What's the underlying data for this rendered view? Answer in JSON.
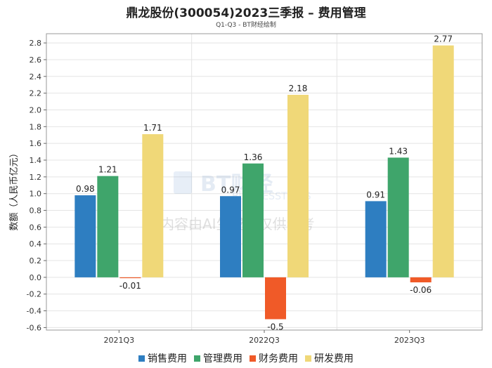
{
  "chart_data": {
    "type": "bar",
    "title": "鼎龙股份(300054)2023三季报 – 费用管理",
    "subtitle": "Q1-Q3 - BT财经绘制",
    "xlabel": "",
    "ylabel": "数额（人民币亿元）",
    "ylim": [
      -0.6,
      2.8
    ],
    "yticks": [
      "-0.6",
      "-0.4",
      "-0.2",
      "0.0",
      "0.2",
      "0.4",
      "0.6",
      "0.8",
      "1.0",
      "1.2",
      "1.4",
      "1.6",
      "1.8",
      "2.0",
      "2.2",
      "2.4",
      "2.6",
      "2.8"
    ],
    "categories": [
      "2021Q3",
      "2022Q3",
      "2023Q3"
    ],
    "series": [
      {
        "name": "销售费用",
        "color": "#2E7EC1",
        "values": [
          0.98,
          0.97,
          0.91
        ],
        "labels": [
          "0.98",
          "0.97",
          "0.91"
        ]
      },
      {
        "name": "管理费用",
        "color": "#3FA56B",
        "values": [
          1.21,
          1.36,
          1.43
        ],
        "labels": [
          "1.21",
          "1.36",
          "1.43"
        ]
      },
      {
        "name": "财务费用",
        "color": "#F05A28",
        "values": [
          -0.01,
          -0.5,
          -0.06
        ],
        "labels": [
          "-0.01",
          "-0.5",
          "-0.06"
        ]
      },
      {
        "name": "研发费用",
        "color": "#F0D878",
        "values": [
          1.71,
          2.18,
          2.77
        ],
        "labels": [
          "1.71",
          "2.18",
          "2.77"
        ]
      }
    ],
    "grid": true,
    "legend": "bottom"
  },
  "watermark": {
    "brand": "BT财经",
    "sub": "BUSINESSTIMES",
    "notice": "内容由AI生成，仅供参考"
  }
}
